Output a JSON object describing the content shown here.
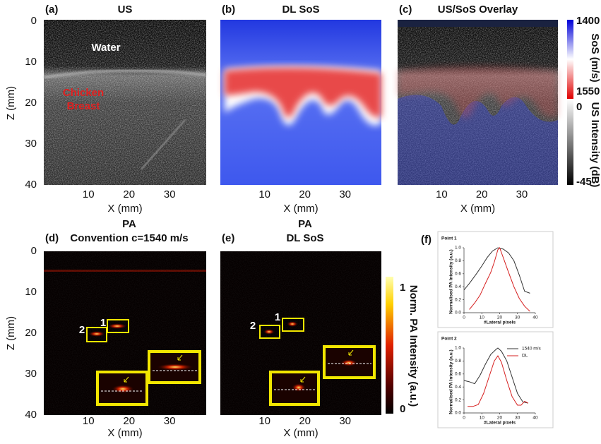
{
  "chart_data": [
    {
      "type": "image",
      "panel_label": "(a)",
      "title": [
        "US"
      ],
      "x_label": "X (mm)",
      "y_label": "Z (mm)",
      "xlim": [
        -1,
        39
      ],
      "ylim": [
        0,
        40
      ],
      "xticks": [
        10,
        20,
        30
      ],
      "yticks": [
        0,
        10,
        20,
        30,
        40
      ],
      "annotations": [
        "Water",
        "Chicken",
        "Breast"
      ]
    },
    {
      "type": "image",
      "panel_label": "(b)",
      "title": [
        "DL SoS"
      ],
      "x_label": "X (mm)",
      "xlim": [
        -1,
        39
      ],
      "ylim": [
        0,
        40
      ],
      "xticks": [
        10,
        20,
        30
      ],
      "annotations": []
    },
    {
      "type": "image",
      "panel_label": "(c)",
      "title": [
        "US/SoS Overlay"
      ],
      "x_label": "X (mm)",
      "xlim": [
        -1,
        39
      ],
      "ylim": [
        0,
        40
      ],
      "xticks": [
        10,
        20,
        30
      ],
      "annotations": []
    },
    {
      "type": "image",
      "panel_label": "(d)",
      "title": [
        "PA",
        "Convention c=1540 m/s"
      ],
      "x_label": "X (mm)",
      "y_label": "Z (mm)",
      "xlim": [
        -1,
        39
      ],
      "ylim": [
        0,
        40
      ],
      "xticks": [
        10,
        20,
        30
      ],
      "yticks": [
        0,
        10,
        20,
        30,
        40
      ],
      "annotations": [
        "1",
        "2"
      ]
    },
    {
      "type": "image",
      "panel_label": "(e)",
      "title": [
        "PA",
        "DL SoS"
      ],
      "x_label": "X (mm)",
      "xlim": [
        -1,
        39
      ],
      "ylim": [
        0,
        40
      ],
      "xticks": [
        10,
        20,
        30
      ],
      "annotations": [
        "1",
        "2"
      ]
    },
    {
      "type": "line",
      "panel_label": "(f)",
      "title": [
        "Point 1"
      ],
      "x_label": "#Lateral pixels",
      "y_label": "Normalised PA Intensity (a.u.)",
      "xlim": [
        0,
        40
      ],
      "ylim": [
        0,
        1
      ],
      "xticks": [
        0,
        10,
        20,
        30,
        40
      ],
      "yticks": [
        {
          "value": 0,
          "label": "0.0"
        },
        {
          "value": 0.2,
          "label": "0.2"
        },
        {
          "value": 0.4,
          "label": "0.4"
        },
        {
          "value": 0.6,
          "label": "0.6"
        },
        {
          "value": 0.8,
          "label": "0.8"
        },
        {
          "value": 1,
          "label": "1.0"
        }
      ],
      "legend": false,
      "series": [
        {
          "name": "1540 m/s",
          "color": "#333333",
          "x": [
            0,
            3,
            7,
            10,
            13,
            16,
            19,
            22,
            25,
            28,
            31,
            34,
            37
          ],
          "values": [
            0.35,
            0.45,
            0.6,
            0.72,
            0.85,
            0.95,
            1.0,
            0.98,
            0.92,
            0.8,
            0.58,
            0.33,
            0.3
          ]
        },
        {
          "name": "DL",
          "color": "#d62020",
          "x": [
            3,
            6,
            9,
            12,
            15,
            17,
            19,
            20,
            22,
            25,
            28,
            31,
            34,
            37
          ],
          "values": [
            0.05,
            0.15,
            0.27,
            0.45,
            0.62,
            0.78,
            0.97,
            1.0,
            0.85,
            0.62,
            0.4,
            0.22,
            0.1,
            0.02
          ]
        }
      ]
    },
    {
      "type": "line",
      "title": [
        "Point 2"
      ],
      "x_label": "#Lateral pixels",
      "y_label": "Normalised PA Intensity (a.u.)",
      "xlim": [
        0,
        40
      ],
      "ylim": [
        0,
        1
      ],
      "xticks": [
        0,
        10,
        20,
        30,
        40
      ],
      "yticks": [
        {
          "value": 0,
          "label": "0.0"
        },
        {
          "value": 0.2,
          "label": "0.2"
        },
        {
          "value": 0.4,
          "label": "0.4"
        },
        {
          "value": 0.6,
          "label": "0.6"
        },
        {
          "value": 0.8,
          "label": "0.8"
        },
        {
          "value": 1,
          "label": "1.0"
        }
      ],
      "legend": true,
      "series": [
        {
          "name": "1540 m/s",
          "color": "#333333",
          "x": [
            0,
            3,
            6,
            9,
            12,
            15,
            18,
            19,
            21,
            24,
            27,
            30,
            33,
            36
          ],
          "values": [
            0.5,
            0.48,
            0.45,
            0.58,
            0.75,
            0.9,
            0.98,
            1.0,
            0.95,
            0.8,
            0.55,
            0.3,
            0.17,
            0.15
          ]
        },
        {
          "name": "DL",
          "color": "#d62020",
          "x": [
            2,
            5,
            8,
            11,
            14,
            17,
            19,
            21,
            24,
            27,
            30,
            32,
            34,
            36
          ],
          "values": [
            0.1,
            0.1,
            0.13,
            0.3,
            0.55,
            0.8,
            0.88,
            0.78,
            0.5,
            0.25,
            0.12,
            0.12,
            0.18,
            0.15
          ]
        }
      ]
    }
  ],
  "colorbars": [
    {
      "label": "SoS (m/s)",
      "lim": [
        1400,
        1550
      ],
      "ticks": [
        1400,
        1550
      ]
    },
    {
      "label": "US Intensity (dB)",
      "lim": [
        0,
        -45
      ],
      "ticks": [
        0,
        -45
      ]
    },
    {
      "label": "Norm. PA Intensity (a.u.)",
      "lim": [
        1,
        0
      ],
      "ticks": [
        1,
        0
      ]
    }
  ]
}
